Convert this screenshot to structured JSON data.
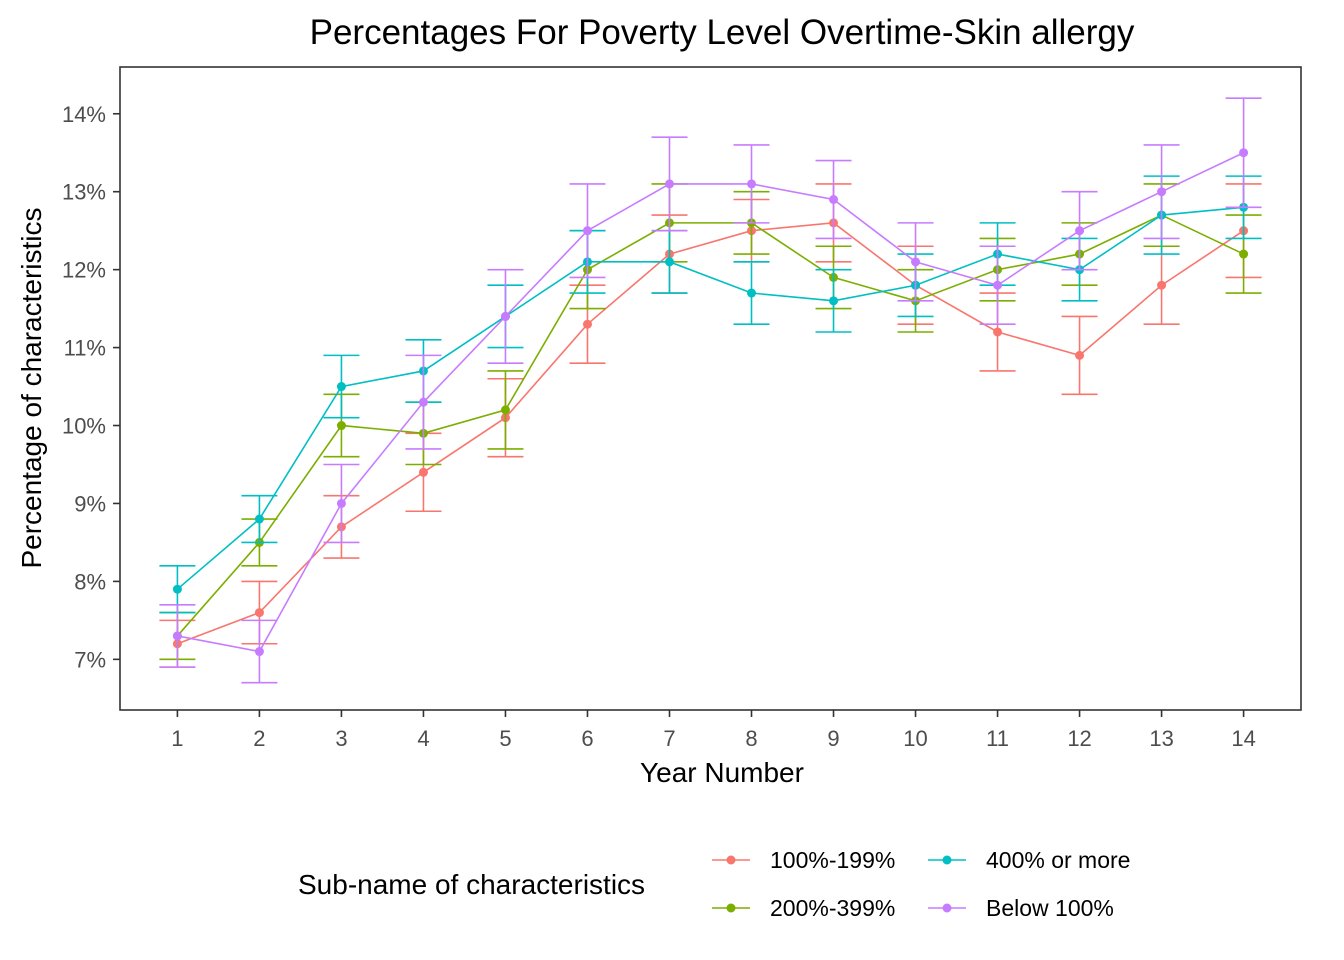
{
  "chart_data": {
    "type": "line",
    "title": "Percentages For Poverty Level Overtime-Skin allergy",
    "xlabel": "Year Number",
    "ylabel": "Percentage of characteristics",
    "x": [
      1,
      2,
      3,
      4,
      5,
      6,
      7,
      8,
      9,
      10,
      11,
      12,
      13,
      14
    ],
    "x_tick_labels": [
      "1",
      "2",
      "3",
      "4",
      "5",
      "6",
      "7",
      "8",
      "9",
      "10",
      "11",
      "12",
      "13",
      "14"
    ],
    "xlim": [
      0.3,
      14.7
    ],
    "ylim": [
      6.35,
      14.6
    ],
    "y_ticks": [
      7,
      8,
      9,
      10,
      11,
      12,
      13,
      14
    ],
    "y_tick_labels": [
      "7%",
      "8%",
      "9%",
      "10%",
      "11%",
      "12%",
      "13%",
      "14%"
    ],
    "grid": false,
    "legend_title": "Sub-name of characteristics",
    "legend_position": "bottom",
    "error_bars": true,
    "series": [
      {
        "name": "100%-199%",
        "color": "#F8766D",
        "values": [
          7.2,
          7.6,
          8.7,
          9.4,
          10.1,
          11.3,
          12.2,
          12.5,
          12.6,
          11.8,
          11.2,
          10.9,
          11.8,
          12.5
        ],
        "lower": [
          6.9,
          7.2,
          8.3,
          8.9,
          9.6,
          10.8,
          11.7,
          12.1,
          12.1,
          11.3,
          10.7,
          10.4,
          11.3,
          11.9
        ],
        "upper": [
          7.5,
          8.0,
          9.1,
          9.9,
          10.6,
          11.8,
          12.7,
          12.9,
          13.1,
          12.3,
          11.7,
          11.4,
          12.3,
          13.1
        ]
      },
      {
        "name": "200%-399%",
        "color": "#7CAE00",
        "values": [
          7.3,
          8.5,
          10.0,
          9.9,
          10.2,
          12.0,
          12.6,
          12.6,
          11.9,
          11.6,
          12.0,
          12.2,
          12.7,
          12.2
        ],
        "lower": [
          7.0,
          8.2,
          9.6,
          9.5,
          9.7,
          11.5,
          12.1,
          12.2,
          11.5,
          11.2,
          11.6,
          11.8,
          12.3,
          11.7
        ],
        "upper": [
          7.6,
          8.8,
          10.4,
          10.3,
          10.7,
          12.5,
          13.1,
          13.0,
          12.3,
          12.0,
          12.4,
          12.6,
          13.1,
          12.7
        ]
      },
      {
        "name": "400% or more",
        "color": "#00BFC4",
        "values": [
          7.9,
          8.8,
          10.5,
          10.7,
          11.4,
          12.1,
          12.1,
          11.7,
          11.6,
          11.8,
          12.2,
          12.0,
          12.7,
          12.8
        ],
        "lower": [
          7.6,
          8.5,
          10.1,
          10.3,
          11.0,
          11.7,
          11.7,
          11.3,
          11.2,
          11.4,
          11.8,
          11.6,
          12.2,
          12.4
        ],
        "upper": [
          8.2,
          9.1,
          10.9,
          11.1,
          11.8,
          12.5,
          12.5,
          12.1,
          12.0,
          12.2,
          12.6,
          12.4,
          13.2,
          13.2
        ]
      },
      {
        "name": "Below 100%",
        "color": "#C77CFF",
        "values": [
          7.3,
          7.1,
          9.0,
          10.3,
          11.4,
          12.5,
          13.1,
          13.1,
          12.9,
          12.1,
          11.8,
          12.5,
          13.0,
          13.5
        ],
        "lower": [
          6.9,
          6.7,
          8.5,
          9.7,
          10.8,
          11.9,
          12.5,
          12.6,
          12.4,
          11.6,
          11.3,
          12.0,
          12.4,
          12.8
        ],
        "upper": [
          7.7,
          7.5,
          9.5,
          10.9,
          12.0,
          13.1,
          13.7,
          13.6,
          13.4,
          12.6,
          12.3,
          13.0,
          13.6,
          14.2
        ]
      }
    ]
  }
}
